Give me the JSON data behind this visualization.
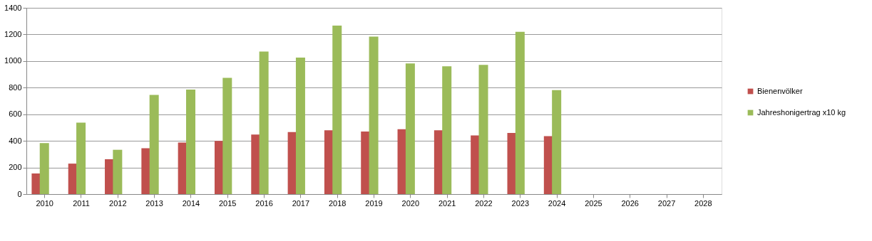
{
  "chart_data": {
    "type": "bar",
    "categories": [
      "2010",
      "2011",
      "2012",
      "2013",
      "2014",
      "2015",
      "2016",
      "2017",
      "2018",
      "2019",
      "2020",
      "2021",
      "2022",
      "2023",
      "2024",
      "2025",
      "2026",
      "2027",
      "2028"
    ],
    "series": [
      {
        "name": "Bienenvölker",
        "color": "#c0504d",
        "values": [
          155,
          229,
          262,
          345,
          388,
          400,
          448,
          466,
          480,
          470,
          487,
          480,
          441,
          459,
          436,
          null,
          null,
          null,
          null
        ]
      },
      {
        "name": "Jahreshonigertrag x10 kg",
        "color": "#9bbb59",
        "values": [
          384,
          537,
          333,
          745,
          785,
          873,
          1071,
          1026,
          1267,
          1183,
          982,
          961,
          971,
          1219,
          781,
          null,
          null,
          null,
          null
        ]
      }
    ],
    "ylim": [
      0,
      1400
    ],
    "yticks": [
      0,
      200,
      400,
      600,
      800,
      1000,
      1200,
      1400
    ],
    "grid": "y",
    "legend": "right"
  }
}
